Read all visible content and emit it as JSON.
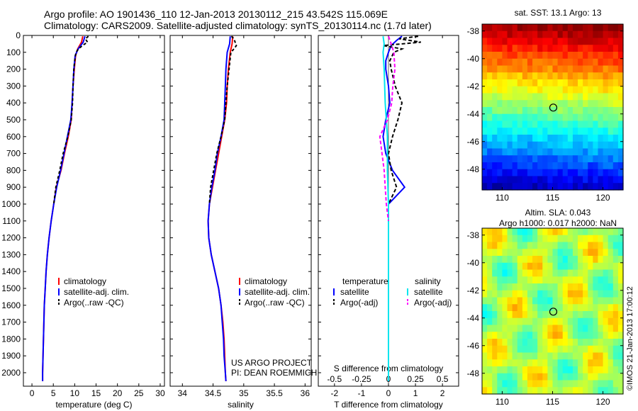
{
  "header": {
    "line1": "Argo profile: AO 1901436_110 12-Jan-2013 20130112_215 43.542S 115.069E",
    "line2": "Climatology: CARS2009. Satellite-adjusted climatology: synTS_20130114.nc (1.7d later)"
  },
  "colors": {
    "climatology": "#ff0000",
    "satellite": "#0000ff",
    "argo": "#000000",
    "t_satellite": "#0000ff",
    "t_argo": "#000000",
    "s_satellite": "#00e5ee",
    "s_argo": "#ff00ff"
  },
  "chart_data": [
    {
      "id": "temperature",
      "type": "line",
      "xlabel": "temperature (deg C)",
      "ylabel": "",
      "xlim": [
        -2,
        31
      ],
      "ylim": [
        2080,
        0
      ],
      "xticks": [
        0,
        5,
        10,
        15,
        20,
        25,
        30
      ],
      "yticks": [
        0,
        100,
        200,
        300,
        400,
        500,
        600,
        700,
        800,
        900,
        1000,
        1100,
        1200,
        1300,
        1400,
        1500,
        1600,
        1700,
        1800,
        1900,
        2000
      ],
      "legend": [
        "climatology",
        "satellite-adj. clim.",
        "Argo(..raw -QC)"
      ],
      "series": [
        {
          "name": "climatology",
          "color": "#ff0000",
          "dash": "",
          "depth": [
            5,
            40,
            80,
            120,
            200,
            300,
            400,
            500,
            600,
            700,
            800,
            900,
            1000,
            1100,
            1200,
            1300,
            1400,
            1500,
            1600,
            1700,
            1800,
            1900,
            2000,
            2050
          ],
          "values": [
            11.9,
            11.6,
            10.7,
            10.2,
            9.9,
            9.6,
            9.4,
            9.2,
            8.5,
            7.6,
            6.8,
            5.7,
            5.1,
            4.5,
            4.0,
            3.6,
            3.3,
            3.1,
            2.9,
            2.8,
            2.7,
            2.6,
            2.5,
            2.5
          ]
        },
        {
          "name": "satellite-adj. clim.",
          "color": "#0000ff",
          "dash": "",
          "depth": [
            5,
            40,
            80,
            120,
            200,
            300,
            400,
            500,
            600,
            700,
            800,
            900,
            1000,
            1100,
            1200,
            1300,
            1400,
            1500,
            1600,
            1700,
            1800,
            1900,
            2000,
            2050
          ],
          "values": [
            12.4,
            12.0,
            10.8,
            10.1,
            9.8,
            9.6,
            9.4,
            9.1,
            8.3,
            7.5,
            6.7,
            5.8,
            5.1,
            4.5,
            4.0,
            3.6,
            3.3,
            3.1,
            2.9,
            2.8,
            2.7,
            2.6,
            2.5,
            2.5
          ]
        },
        {
          "name": "Argo(..raw -QC)",
          "color": "#000000",
          "dash": "4,3",
          "depth": [
            5,
            20,
            40,
            60,
            80,
            100,
            150,
            200,
            300,
            400,
            500,
            600,
            700,
            800,
            900,
            1000
          ],
          "values": [
            13.2,
            12.5,
            13.0,
            11.8,
            10.9,
            10.3,
            10.0,
            9.8,
            9.6,
            9.5,
            9.2,
            8.4,
            7.3,
            6.5,
            5.6,
            5.1
          ]
        }
      ]
    },
    {
      "id": "salinity",
      "type": "line",
      "xlabel": "salinity",
      "ylabel": "",
      "xlim": [
        33.8,
        36.1
      ],
      "ylim": [
        2080,
        0
      ],
      "xticks": [
        34,
        34.5,
        35,
        35.5,
        36
      ],
      "xticklabels": [
        "34",
        "34.5",
        "35",
        "35.5",
        "36"
      ],
      "legend": [
        "climatology",
        "satellite-adj. clim.",
        "Argo(..raw -QC)"
      ],
      "annotation": [
        "US ARGO PROJECT",
        "PI: DEAN ROEMMICH"
      ],
      "series": [
        {
          "name": "climatology",
          "color": "#ff0000",
          "dash": "",
          "depth": [
            5,
            50,
            100,
            200,
            300,
            400,
            500,
            600,
            700,
            800,
            900,
            1000,
            1100,
            1200,
            1300,
            1400,
            1500,
            1600,
            1700,
            1800,
            1900,
            2000,
            2050
          ],
          "values": [
            34.82,
            34.81,
            34.78,
            34.75,
            34.73,
            34.72,
            34.69,
            34.64,
            34.59,
            34.54,
            34.49,
            34.44,
            34.42,
            34.43,
            34.47,
            34.53,
            34.59,
            34.63,
            34.66,
            34.68,
            34.69,
            34.7,
            34.71
          ]
        },
        {
          "name": "satellite-adj. clim.",
          "color": "#0000ff",
          "dash": "",
          "depth": [
            5,
            50,
            100,
            200,
            300,
            400,
            500,
            600,
            700,
            800,
            900,
            1000,
            1100,
            1200,
            1300,
            1400,
            1500,
            1600,
            1700,
            1800,
            1900,
            2000,
            2050
          ],
          "values": [
            34.78,
            34.77,
            34.73,
            34.71,
            34.7,
            34.69,
            34.68,
            34.63,
            34.57,
            34.53,
            34.48,
            34.44,
            34.42,
            34.43,
            34.47,
            34.53,
            34.59,
            34.63,
            34.65,
            34.67,
            34.68,
            34.7,
            34.71
          ]
        },
        {
          "name": "Argo(..raw -QC)",
          "color": "#000000",
          "dash": "4,3",
          "depth": [
            5,
            20,
            40,
            60,
            80,
            100,
            200,
            300,
            400,
            500,
            600,
            700,
            800,
            900,
            1000
          ],
          "values": [
            34.8,
            34.84,
            34.86,
            34.88,
            34.84,
            34.79,
            34.76,
            34.73,
            34.71,
            34.69,
            34.63,
            34.56,
            34.51,
            34.46,
            34.44
          ]
        }
      ]
    },
    {
      "id": "difference",
      "type": "line",
      "xlabel": "T difference from climatology",
      "xlabel_top": "S difference from climatology",
      "ylabel": "",
      "xlim": [
        -2.6,
        2.6
      ],
      "ylim": [
        2080,
        0
      ],
      "xticks": [
        -2,
        -1,
        0,
        1,
        2
      ],
      "xticklabels": [
        "-2",
        "-1",
        "0",
        "1",
        "2"
      ],
      "s_xticks": [
        -0.5,
        -0.25,
        0,
        0.25,
        0.5
      ],
      "s_xticklabels": [
        "-0.5",
        "-0.25",
        "0",
        "0.25",
        "0.5"
      ],
      "legend_titles": [
        "temperature",
        "salinity"
      ],
      "legend": [
        "satellite",
        "Argo(-adj)",
        "satellite",
        "Argo(-adj)"
      ],
      "series": [
        {
          "name": "satellite",
          "quantity": "temperature",
          "color": "#0000ff",
          "dash": "",
          "depth": [
            5,
            30,
            60,
            100,
            150,
            200,
            300,
            400,
            500,
            600,
            700,
            800,
            900,
            1000,
            1100,
            1200,
            1400,
            1600,
            1800,
            2000,
            2050
          ],
          "values": [
            0.5,
            0.3,
            0.1,
            0.0,
            -0.1,
            -0.1,
            0.0,
            0.05,
            -0.1,
            -0.2,
            -0.1,
            0.15,
            0.6,
            0.0,
            0.0,
            0.0,
            0.0,
            0.0,
            0.0,
            0.0,
            0.0
          ]
        },
        {
          "name": "Argo(-adj)",
          "quantity": "temperature",
          "color": "#000000",
          "dash": "5,3",
          "depth": [
            5,
            20,
            40,
            60,
            80,
            100,
            150,
            200,
            300,
            400,
            500,
            600,
            700,
            800,
            900,
            1000
          ],
          "values": [
            1.1,
            0.4,
            1.2,
            -0.2,
            0.5,
            0.2,
            0.05,
            0.1,
            0.25,
            0.5,
            0.35,
            0.15,
            0.0,
            0.1,
            0.3,
            0.0
          ]
        },
        {
          "name": "satellite",
          "quantity": "salinity",
          "color": "#00e5ee",
          "dash": "",
          "depth": [
            5,
            50,
            100,
            200,
            400,
            600,
            800,
            1000,
            1200,
            1400,
            1600,
            1800,
            2000,
            2050
          ],
          "values": [
            -0.05,
            -0.04,
            -0.05,
            -0.04,
            -0.03,
            -0.01,
            -0.01,
            0.0,
            0.0,
            0.0,
            0.0,
            0.0,
            0.0,
            0.0
          ]
        },
        {
          "name": "Argo(-adj)",
          "quantity": "salinity",
          "color": "#ff00ff",
          "dash": "5,3",
          "depth": [
            5,
            40,
            100,
            200,
            300,
            400,
            500,
            600,
            700,
            800,
            900,
            1000,
            1100
          ],
          "values": [
            0.0,
            0.02,
            0.05,
            0.06,
            0.04,
            0.03,
            -0.01,
            -0.08,
            -0.06,
            -0.04,
            -0.03,
            -0.02,
            0.0
          ]
        }
      ]
    },
    {
      "id": "sst_map",
      "type": "heatmap",
      "title": "sat. SST: 13.1  Argo: 13",
      "xlim": [
        108,
        122
      ],
      "ylim": [
        -49.5,
        -37.5
      ],
      "xticks": [
        110,
        115,
        120
      ],
      "yticks": [
        -38,
        -40,
        -42,
        -44,
        -46,
        -48
      ],
      "marker": {
        "lon": 115.069,
        "lat": -43.542
      }
    },
    {
      "id": "sla_map",
      "type": "heatmap",
      "title_lines": [
        "Altim. SLA: 0.043",
        "Argo h1000: 0.017  h2000: NaN"
      ],
      "xlim": [
        108,
        122
      ],
      "ylim": [
        -49.5,
        -37.5
      ],
      "xticks": [
        110,
        115,
        120
      ],
      "yticks": [
        -38,
        -40,
        -42,
        -44,
        -46,
        -48
      ],
      "marker": {
        "lon": 115.069,
        "lat": -43.542
      }
    }
  ],
  "side_label": "©IMOS 21-Jan-2013 17:00:12"
}
